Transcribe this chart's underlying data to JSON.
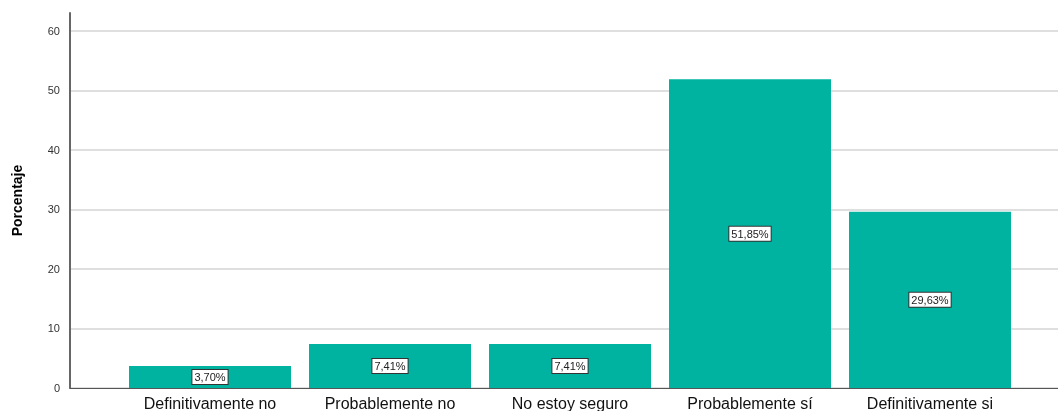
{
  "chart_data": {
    "type": "bar",
    "ylabel": "Porcentaje",
    "categories": [
      "Definitivamente no",
      "Probablemente no",
      "No estoy seguro",
      "Probablemente sí",
      "Definitivamente si"
    ],
    "values": [
      3.7,
      7.41,
      7.41,
      51.85,
      29.63
    ],
    "value_labels": [
      "3,70%",
      "7,41%",
      "7,41%",
      "51,85%",
      "29,63%"
    ],
    "color": "#00b3a1",
    "ylim": [
      0,
      63
    ],
    "yticks": [
      0,
      10,
      20,
      30,
      40,
      50,
      60
    ],
    "grid": "y"
  }
}
